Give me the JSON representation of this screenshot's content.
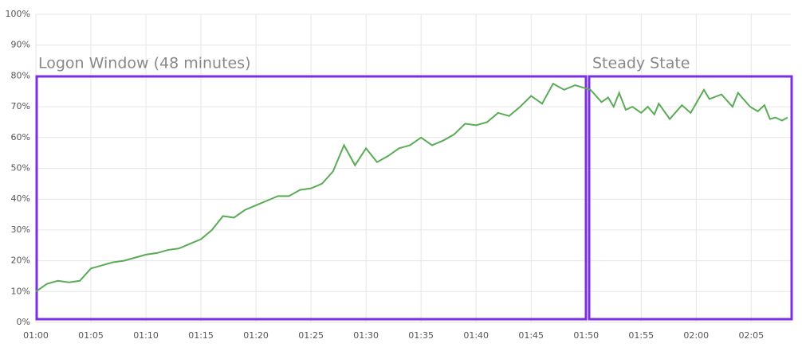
{
  "chart_data": {
    "type": "line",
    "annotations": [
      "Logon Window (48 minutes)",
      "Steady State"
    ],
    "series": [
      {
        "color": "#5aab55",
        "x": [
          0,
          1,
          2,
          3,
          4,
          5,
          6,
          7,
          8,
          9,
          10,
          11,
          12,
          13,
          14,
          15,
          16,
          17,
          18,
          19,
          20,
          21,
          22,
          23,
          24,
          25,
          26,
          27,
          28,
          29,
          30,
          31,
          32,
          33,
          34,
          35,
          36,
          37,
          38,
          39,
          40,
          41,
          42,
          43,
          44,
          45,
          46,
          47,
          48,
          49,
          50.4,
          51.4,
          52,
          52.5,
          53,
          53.6,
          54.2,
          55,
          55.6,
          56.2,
          56.6,
          57.6,
          58.7,
          59.5,
          60.7,
          61.2,
          62.3,
          63.3,
          63.8,
          64.9,
          65.6,
          66.2,
          66.7,
          67.2,
          67.8,
          68.3
        ],
        "values": [
          10,
          12.5,
          13.5,
          13,
          13.5,
          17.5,
          18.5,
          19.5,
          20,
          21,
          22,
          22.5,
          23.5,
          24,
          25.5,
          27,
          30,
          34.5,
          34,
          36.5,
          38,
          39.5,
          41,
          41,
          43,
          43.5,
          45,
          49,
          57.5,
          51,
          56.5,
          52,
          54,
          56.5,
          57.5,
          60,
          57.5,
          59,
          61,
          64.5,
          64,
          65,
          68,
          67,
          70,
          73.5,
          71,
          77.5,
          75.5,
          77,
          75.5,
          71.5,
          73,
          70,
          74.5,
          69,
          70,
          68,
          70,
          67.5,
          71,
          66,
          70.5,
          68,
          75.5,
          72.5,
          74,
          70,
          74.5,
          70,
          68.5,
          70.5,
          66,
          66.5,
          65.5,
          66.5
        ]
      }
    ],
    "xlim": [
      0,
      68.6
    ],
    "xticks": [
      {
        "value": 0,
        "label": "01:00"
      },
      {
        "value": 5,
        "label": "01:05"
      },
      {
        "value": 10,
        "label": "01:10"
      },
      {
        "value": 15,
        "label": "01:15"
      },
      {
        "value": 20,
        "label": "01:20"
      },
      {
        "value": 25,
        "label": "01:25"
      },
      {
        "value": 30,
        "label": "01:30"
      },
      {
        "value": 35,
        "label": "01:35"
      },
      {
        "value": 40,
        "label": "01:40"
      },
      {
        "value": 45,
        "label": "01:45"
      },
      {
        "value": 50,
        "label": "01:50"
      },
      {
        "value": 55,
        "label": "01:55"
      },
      {
        "value": 60,
        "label": "02:00"
      },
      {
        "value": 65,
        "label": "02:05"
      }
    ],
    "ylim": [
      0,
      100
    ],
    "yticks": [
      {
        "value": 0,
        "label": "0%"
      },
      {
        "value": 10,
        "label": "10%"
      },
      {
        "value": 20,
        "label": "20%"
      },
      {
        "value": 30,
        "label": "30%"
      },
      {
        "value": 40,
        "label": "40%"
      },
      {
        "value": 50,
        "label": "50%"
      },
      {
        "value": 60,
        "label": "60%"
      },
      {
        "value": 70,
        "label": "70%"
      },
      {
        "value": 80,
        "label": "80%"
      },
      {
        "value": 90,
        "label": "90%"
      },
      {
        "value": 100,
        "label": "100%"
      }
    ],
    "grid": true
  }
}
